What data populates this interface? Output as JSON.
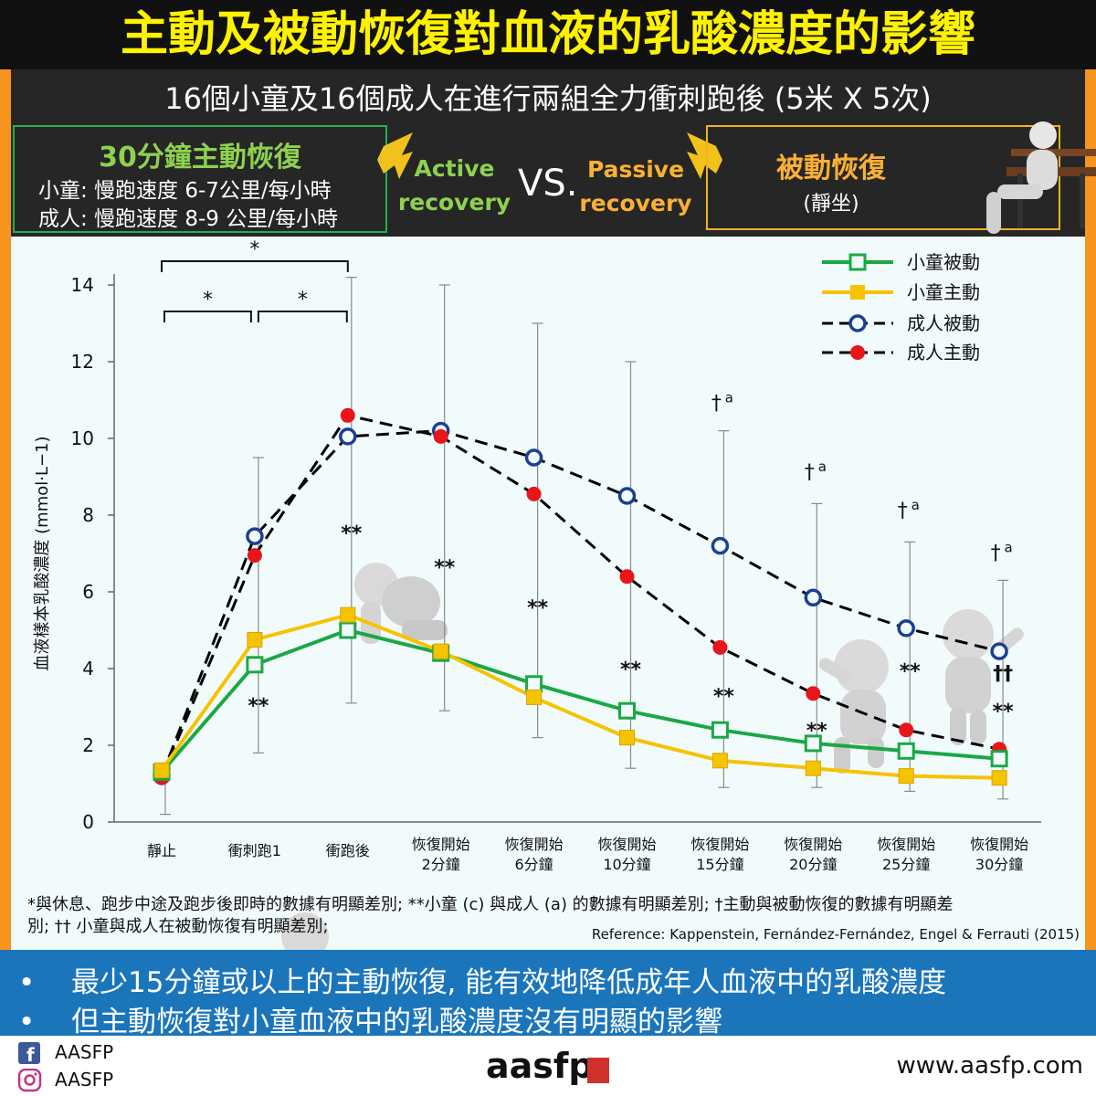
{
  "header": {
    "title": "主動及被動恢復對血液的乳酸濃度的影響",
    "subtitle": "16個小童及16個成人在進行兩組全力衝刺跑後 (5米 X 5次)"
  },
  "active_box": {
    "title": "30分鐘主動恢復",
    "line1": "小童: 慢跑速度 6-7公里/每小時",
    "line2": "成人: 慢跑速度 8-9 公里/每小時"
  },
  "labels": {
    "active_recovery": [
      "Active",
      "recovery"
    ],
    "vs": "VS.",
    "passive_recovery": [
      "Passive",
      "recovery"
    ]
  },
  "passive_box": {
    "title": "被動恢復",
    "subtitle": "(靜坐)"
  },
  "colors": {
    "child": "#1aa845",
    "child_active": "#f6c300",
    "adult": "#000000",
    "adult_passive_marker": "#1c3f94",
    "adult_active_marker": "#e8161b",
    "frame": "#f7941d",
    "bottom_bar": "#1b75bb"
  },
  "chart_data": {
    "type": "line",
    "ylabel": "血液樣本乳酸濃度 (mmol·L−1)",
    "ylim": [
      0,
      14
    ],
    "yticks": [
      "0",
      "2",
      "4",
      "6",
      "8",
      "10",
      "12",
      "14"
    ],
    "categories": [
      "靜止",
      "衝刺跑1",
      "衝跑後",
      [
        "恢復開始",
        "2分鐘"
      ],
      [
        "恢復開始",
        "6分鐘"
      ],
      [
        "恢復開始",
        "10分鐘"
      ],
      [
        "恢復開始",
        "15分鐘"
      ],
      [
        "恢復開始",
        "20分鐘"
      ],
      [
        "恢復開始",
        "25分鐘"
      ],
      [
        "恢復開始",
        "30分鐘"
      ]
    ],
    "series": [
      {
        "name": "小童被動",
        "color": "#1aa845",
        "dash": false,
        "marker": "square-open",
        "values": [
          1.3,
          4.1,
          5.0,
          4.4,
          3.6,
          2.9,
          2.4,
          2.05,
          1.85,
          1.65
        ]
      },
      {
        "name": "小童主動",
        "color": "#f6c300",
        "dash": false,
        "marker": "square-filled",
        "values": [
          1.35,
          4.75,
          5.4,
          4.45,
          3.25,
          2.2,
          1.6,
          1.4,
          1.2,
          1.15
        ]
      },
      {
        "name": "成人被動",
        "color": "#000000",
        "dash": true,
        "marker": "circle-open",
        "values": [
          1.2,
          7.45,
          10.05,
          10.2,
          9.5,
          8.5,
          7.2,
          5.85,
          5.05,
          4.45
        ]
      },
      {
        "name": "成人主動",
        "color": "#000000",
        "dash": true,
        "marker": "circle-red",
        "values": [
          1.15,
          6.95,
          10.6,
          10.05,
          8.55,
          6.4,
          4.55,
          3.35,
          2.4,
          1.9
        ]
      }
    ],
    "error_bars": [
      {
        "low": 0.2,
        "high": 1.4
      },
      {
        "low": 1.8,
        "high": 9.5
      },
      {
        "low": 3.1,
        "high": 14.2
      },
      {
        "low": 2.9,
        "high": 14.0
      },
      {
        "low": 2.2,
        "high": 13.0
      },
      {
        "low": 1.4,
        "high": 12.0
      },
      {
        "low": 0.9,
        "high": 10.2
      },
      {
        "low": 0.9,
        "high": 8.3
      },
      {
        "low": 0.8,
        "high": 7.3
      },
      {
        "low": 0.6,
        "high": 6.3
      }
    ],
    "annotations": {
      "bracket_star": "*",
      "double_star": "**",
      "dagger": "†",
      "dagger_sup": "a",
      "double_dagger": "††"
    },
    "legend_position": "top-right"
  },
  "footnote": {
    "line1": "*與休息、跑步中途及跑步後即時的數據有明顯差別; **小童 (c) 與成人 (a) 的數據有明顯差別; †主動與被動恢復的數據有明顯差",
    "line2": "別; †† 小童與成人在被動恢復有明顯差別;",
    "reference": "Reference: Kappenstein, Fernández-Fernández, Engel & Ferrauti (2015)"
  },
  "bullets": [
    "最少15分鐘或以上的主動恢復, 能有效地降低成年人血液中的乳酸濃度",
    "但主動恢復對小童血液中的乳酸濃度沒有明顯的影響"
  ],
  "bullet_char": "•",
  "footer": {
    "facebook": "AASFP",
    "instagram": "AASFP",
    "logo": "aasfp",
    "website": "www.aasfp.com"
  }
}
